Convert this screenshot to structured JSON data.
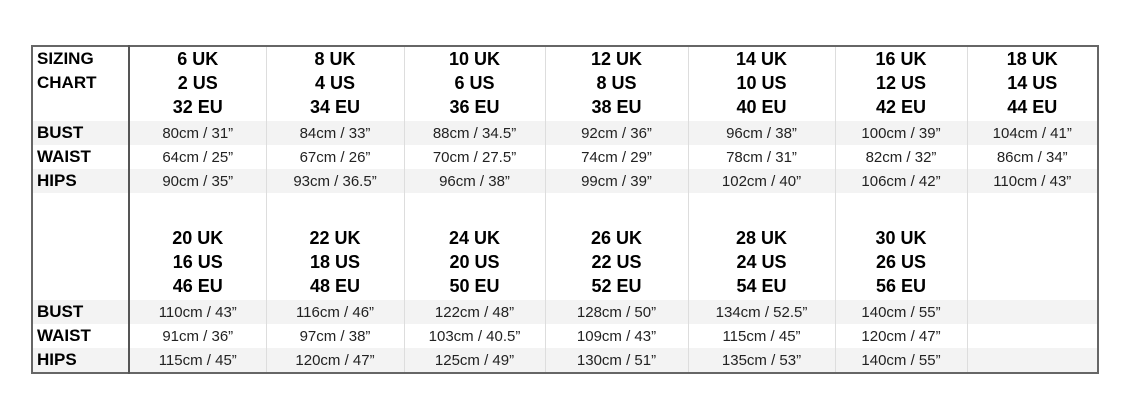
{
  "title_lines": [
    "SIZING",
    "CHART"
  ],
  "measure_labels": [
    "BUST",
    "WAIST",
    "HIPS"
  ],
  "sections": [
    {
      "sizes": [
        {
          "uk": "6 UK",
          "us": "2 US",
          "eu": "32 EU",
          "bust": "80cm / 31”",
          "waist": "64cm / 25”",
          "hips": "90cm / 35”"
        },
        {
          "uk": "8 UK",
          "us": "4 US",
          "eu": "34 EU",
          "bust": "84cm / 33”",
          "waist": "67cm / 26”",
          "hips": "93cm / 36.5”"
        },
        {
          "uk": "10 UK",
          "us": "6 US",
          "eu": "36 EU",
          "bust": "88cm / 34.5”",
          "waist": "70cm / 27.5”",
          "hips": "96cm / 38”"
        },
        {
          "uk": "12 UK",
          "us": "8 US",
          "eu": "38 EU",
          "bust": "92cm / 36”",
          "waist": "74cm / 29”",
          "hips": "99cm / 39”"
        },
        {
          "uk": "14 UK",
          "us": "10 US",
          "eu": "40 EU",
          "bust": "96cm / 38”",
          "waist": "78cm / 31”",
          "hips": "102cm / 40”"
        },
        {
          "uk": "16 UK",
          "us": "12 US",
          "eu": "42 EU",
          "bust": "100cm / 39”",
          "waist": "82cm / 32”",
          "hips": "106cm / 42”"
        },
        {
          "uk": "18 UK",
          "us": "14 US",
          "eu": "44 EU",
          "bust": "104cm / 41”",
          "waist": "86cm / 34”",
          "hips": "110cm / 43”"
        }
      ]
    },
    {
      "sizes": [
        {
          "uk": "20 UK",
          "us": "16 US",
          "eu": "46 EU",
          "bust": "110cm / 43”",
          "waist": "91cm / 36”",
          "hips": "115cm / 45”"
        },
        {
          "uk": "22 UK",
          "us": "18 US",
          "eu": "48 EU",
          "bust": "116cm / 46”",
          "waist": "97cm / 38”",
          "hips": "120cm / 47”"
        },
        {
          "uk": "24 UK",
          "us": "20 US",
          "eu": "50 EU",
          "bust": "122cm / 48”",
          "waist": "103cm / 40.5”",
          "hips": "125cm / 49”"
        },
        {
          "uk": "26 UK",
          "us": "22 US",
          "eu": "52 EU",
          "bust": "128cm / 50”",
          "waist": "109cm / 43”",
          "hips": "130cm / 51”"
        },
        {
          "uk": "28 UK",
          "us": "24 US",
          "eu": "54 EU",
          "bust": "134cm / 52.5”",
          "waist": "115cm / 45”",
          "hips": "135cm / 53”"
        },
        {
          "uk": "30 UK",
          "us": "26 US",
          "eu": "56 EU",
          "bust": "140cm / 55”",
          "waist": "120cm / 47”",
          "hips": "140cm / 55”"
        }
      ]
    }
  ]
}
